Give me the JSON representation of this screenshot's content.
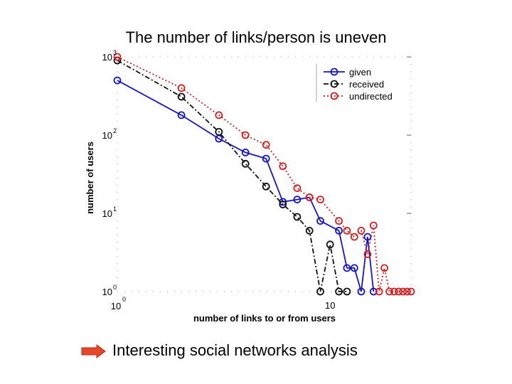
{
  "slide": {
    "title": "The number of links/person is uneven",
    "bullet_text": "Interesting social networks analysis"
  },
  "colors": {
    "given": "#1515c8",
    "received": "#111111",
    "undirected": "#d42020",
    "arrow": "#e8462a"
  },
  "icons": {
    "bullet": "right-arrow-icon"
  },
  "chart_data": {
    "type": "line",
    "title": "",
    "xlabel": "number of links to or from users",
    "ylabel": "number of users",
    "xscale": "log",
    "yscale": "log",
    "xlim": [
      1,
      24
    ],
    "ylim": [
      1,
      1000
    ],
    "xticks": [
      {
        "value": 1,
        "base": "10",
        "exp": "0"
      },
      {
        "value": 10,
        "label": "10"
      }
    ],
    "yticks": [
      {
        "value": 1,
        "base": "10",
        "exp": "0"
      },
      {
        "value": 10,
        "base": "10",
        "exp": "1"
      },
      {
        "value": 100,
        "base": "10",
        "exp": "2"
      },
      {
        "value": 1000,
        "base": "10",
        "exp": "3"
      }
    ],
    "legend_position": "top-right",
    "series": [
      {
        "name": "given",
        "style": "solid",
        "x": [
          1,
          2,
          3,
          4,
          5,
          6,
          7,
          8,
          9,
          11,
          12,
          13,
          14,
          15,
          16
        ],
        "y": [
          500,
          180,
          90,
          60,
          50,
          14,
          15,
          16,
          8,
          6,
          2,
          2,
          1,
          5,
          1
        ]
      },
      {
        "name": "received",
        "style": "dashdot",
        "x": [
          1,
          2,
          3,
          4,
          5,
          6,
          7,
          8,
          9,
          10,
          11,
          12
        ],
        "y": [
          900,
          310,
          110,
          43,
          22,
          13,
          9,
          6,
          1,
          4,
          1,
          1
        ]
      },
      {
        "name": "undirected",
        "style": "dotted",
        "x": [
          1,
          2,
          3,
          4,
          5,
          6,
          7,
          8,
          9,
          11,
          12,
          13,
          14,
          15,
          16,
          17,
          18,
          19,
          20,
          21,
          22,
          23,
          24
        ],
        "y": [
          1000,
          400,
          180,
          100,
          75,
          40,
          21,
          16,
          15,
          8,
          6,
          5,
          6,
          3,
          7,
          1,
          2,
          1,
          1,
          1,
          1,
          1,
          1
        ]
      }
    ]
  }
}
